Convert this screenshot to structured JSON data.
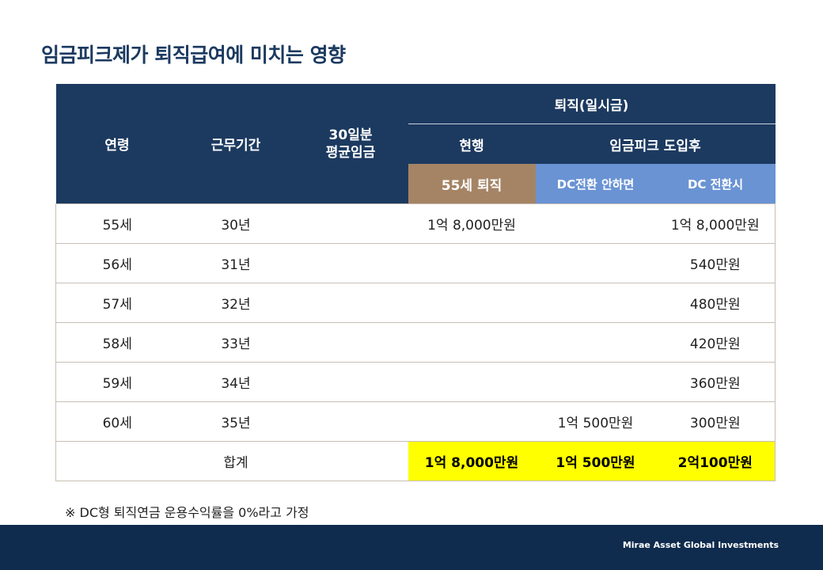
{
  "title": "임금피크제가 퇴직급여에 미치는 영향",
  "table": {
    "headers": {
      "age": "연령",
      "tenure": "근무기간",
      "avg_wage": "30일분\n평균임금",
      "retirement": "퇴직(일시금)",
      "current": "현행",
      "after_peak": "임금피크 도입후",
      "retire_55": "55세 퇴직",
      "no_dc": "DC전환 안하면",
      "dc": "DC 전환시"
    },
    "rows": [
      {
        "age": "55세",
        "tenure": "30년",
        "avg": "",
        "current": "1억 8,000만원",
        "no_dc": "",
        "dc": "1억 8,000만원"
      },
      {
        "age": "56세",
        "tenure": "31년",
        "avg": "",
        "current": "",
        "no_dc": "",
        "dc": "540만원"
      },
      {
        "age": "57세",
        "tenure": "32년",
        "avg": "",
        "current": "",
        "no_dc": "",
        "dc": "480만원"
      },
      {
        "age": "58세",
        "tenure": "33년",
        "avg": "",
        "current": "",
        "no_dc": "",
        "dc": "420만원"
      },
      {
        "age": "59세",
        "tenure": "34년",
        "avg": "",
        "current": "",
        "no_dc": "",
        "dc": "360만원"
      },
      {
        "age": "60세",
        "tenure": "35년",
        "avg": "",
        "current": "",
        "no_dc": "1억 500만원",
        "dc": "300만원"
      }
    ],
    "total": {
      "label": "합계",
      "current": "1억 8,000만원",
      "no_dc": "1억 500만원",
      "dc": "2억100만원"
    }
  },
  "note": "※ DC형 퇴직연금 운용수익률을 0%라고 가정",
  "footer": {
    "brand": "Mirae Asset Global Investments"
  },
  "colors": {
    "navy": "#1c3a60",
    "brown": "#a58465",
    "blue": "#6a93d4",
    "highlight": "#ffff00",
    "footer": "#0f2b4d"
  }
}
